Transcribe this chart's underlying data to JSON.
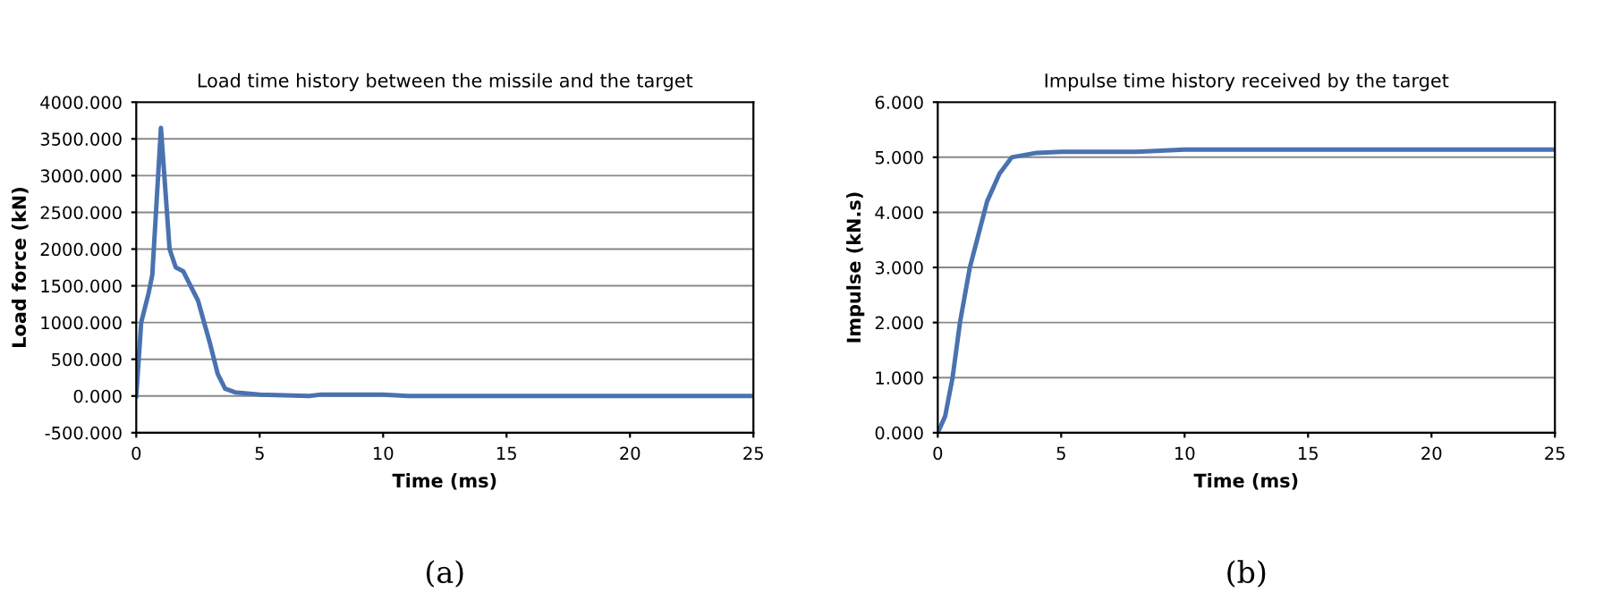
{
  "chart_data": [
    {
      "type": "line",
      "title": "Load time history between the missile and the target",
      "xlabel": "Time (ms)",
      "ylabel": "Load force (kN)",
      "annotations": [
        "(a)"
      ],
      "series": [
        {
          "color": "#4a72b0",
          "x": [
            0,
            0.2,
            0.5,
            0.65,
            1.0,
            1.35,
            1.6,
            1.9,
            2.2,
            2.5,
            3.0,
            3.3,
            3.6,
            4,
            5,
            7,
            7.5,
            10,
            11,
            25
          ],
          "values": [
            0,
            1000,
            1400,
            1650,
            3650,
            2000,
            1750,
            1700,
            1500,
            1300,
            700,
            300,
            100,
            50,
            20,
            0,
            20,
            20,
            0,
            0
          ]
        }
      ],
      "xlim": [
        0,
        25
      ],
      "xticks": [
        0,
        5,
        10,
        15,
        20,
        25
      ],
      "ylim": [
        -500,
        4000
      ],
      "yticks": [
        {
          "value": -500,
          "label": "-500.000"
        },
        {
          "value": 0,
          "label": "0.000"
        },
        {
          "value": 500,
          "label": "500.000"
        },
        {
          "value": 1000,
          "label": "1000.000"
        },
        {
          "value": 1500,
          "label": "1500.000"
        },
        {
          "value": 2000,
          "label": "2000.000"
        },
        {
          "value": 2500,
          "label": "2500.000"
        },
        {
          "value": 3000,
          "label": "3000.000"
        },
        {
          "value": 3500,
          "label": "3500.000"
        },
        {
          "value": 4000,
          "label": "4000.000"
        }
      ],
      "grid": "y"
    },
    {
      "type": "line",
      "title": "Impulse time history received by the target",
      "xlabel": "Time (ms)",
      "ylabel": "Impulse (kN.s)",
      "annotations": [
        "(b)"
      ],
      "series": [
        {
          "color": "#4a72b0",
          "x": [
            0,
            0.3,
            0.6,
            0.9,
            1.3,
            2.0,
            2.5,
            3.0,
            4,
            5,
            8,
            10,
            25
          ],
          "values": [
            0,
            0.3,
            1.0,
            2.0,
            3.0,
            4.2,
            4.7,
            5.0,
            5.08,
            5.1,
            5.1,
            5.14,
            5.14
          ]
        }
      ],
      "xlim": [
        0,
        25
      ],
      "xticks": [
        0,
        5,
        10,
        15,
        20,
        25
      ],
      "ylim": [
        0,
        6
      ],
      "yticks": [
        {
          "value": 0,
          "label": "0.000"
        },
        {
          "value": 1,
          "label": "1.000"
        },
        {
          "value": 2,
          "label": "2.000"
        },
        {
          "value": 3,
          "label": "3.000"
        },
        {
          "value": 4,
          "label": "4.000"
        },
        {
          "value": 5,
          "label": "5.000"
        },
        {
          "value": 6,
          "label": "6.000"
        }
      ],
      "grid": "y"
    }
  ]
}
